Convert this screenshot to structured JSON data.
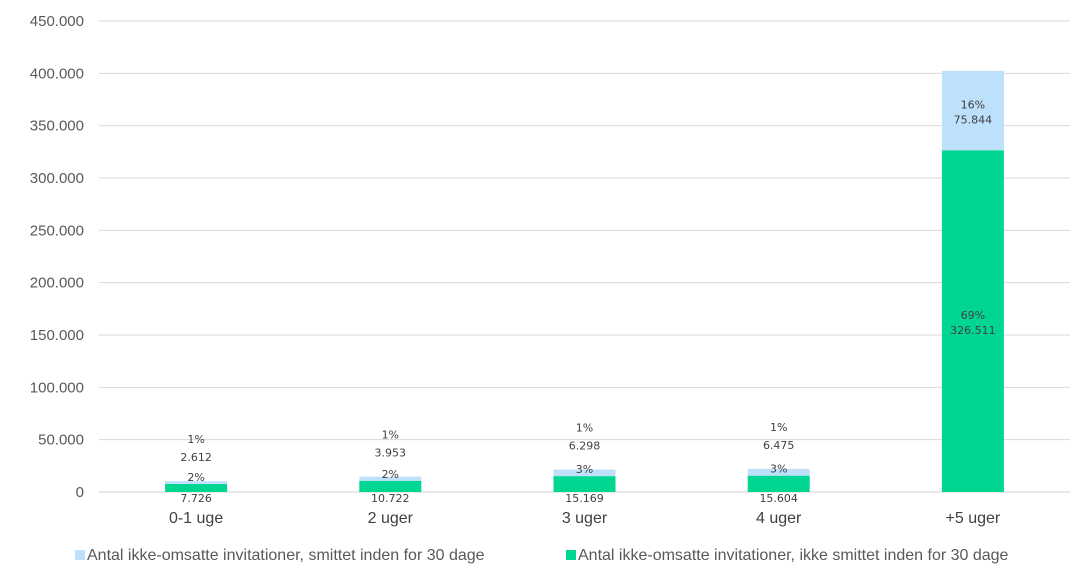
{
  "chart_data": {
    "type": "bar",
    "stacked": true,
    "categories": [
      "0-1 uge",
      "2 uger",
      "3 uger",
      "4 uger",
      "+5 uger"
    ],
    "ylim": [
      0,
      450000
    ],
    "yticks": [
      0,
      50000,
      100000,
      150000,
      200000,
      250000,
      300000,
      350000,
      400000,
      450000
    ],
    "ytick_labels": [
      "0",
      "50.000",
      "100.000",
      "150.000",
      "200.000",
      "250.000",
      "300.000",
      "350.000",
      "400.000",
      "450.000"
    ],
    "grid": true,
    "legend_position": "bottom",
    "series": [
      {
        "name": "Antal ikke-omsatte invitationer, ikke smittet inden for 30 dage",
        "color": "#00D592",
        "values": [
          7726,
          10722,
          15169,
          15604,
          326511
        ],
        "value_labels": [
          "7.726",
          "10.722",
          "15.169",
          "15.604",
          "326.511"
        ],
        "pct_labels": [
          "2%",
          "2%",
          "3%",
          "3%",
          "69%"
        ]
      },
      {
        "name": "Antal ikke-omsatte invitationer, smittet inden for 30 dage",
        "color": "#BDE0FB",
        "values": [
          2612,
          3953,
          6298,
          6475,
          75844
        ],
        "value_labels": [
          "2.612",
          "3.953",
          "6.298",
          "6.475",
          "75.844"
        ],
        "pct_labels": [
          "1%",
          "1%",
          "1%",
          "1%",
          "16%"
        ]
      }
    ],
    "legend_order": [
      1,
      0
    ]
  }
}
